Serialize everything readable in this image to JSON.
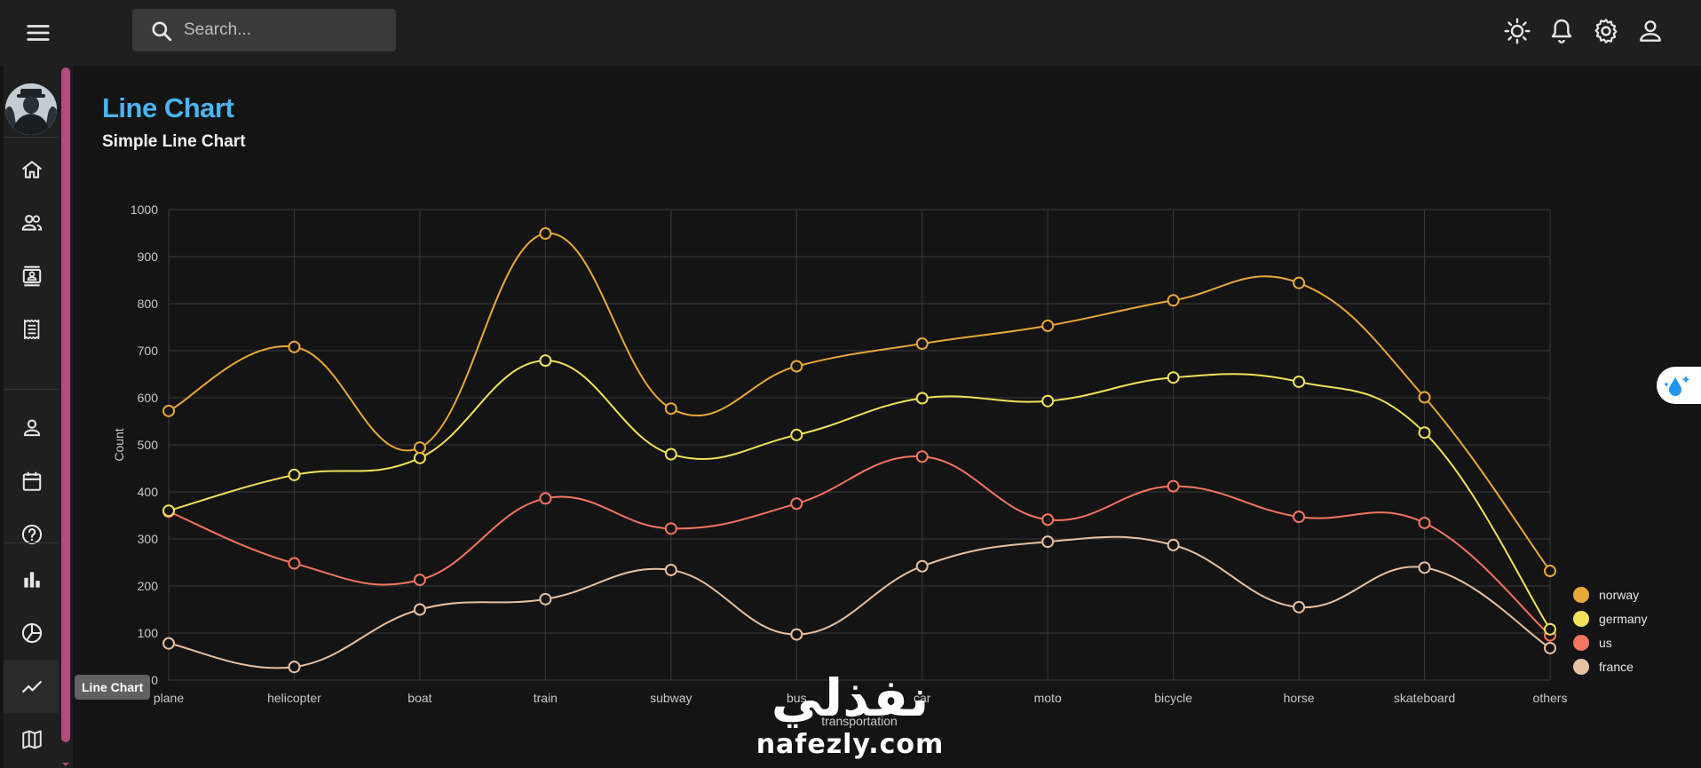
{
  "search": {
    "placeholder": "Search..."
  },
  "topbar": {
    "icons": [
      "menu-icon",
      "search-icon",
      "sun-icon",
      "bell-icon",
      "gear-icon",
      "user-icon"
    ]
  },
  "sidebar": {
    "items": [
      {
        "name": "home",
        "icon": "home-icon"
      },
      {
        "name": "team",
        "icon": "people-icon"
      },
      {
        "name": "contacts",
        "icon": "contacts-icon"
      },
      {
        "name": "invoices",
        "icon": "receipt-icon"
      },
      {
        "name": "profile",
        "icon": "person-icon"
      },
      {
        "name": "calendar",
        "icon": "calendar-icon"
      },
      {
        "name": "faq",
        "icon": "help-icon"
      },
      {
        "name": "bar-chart",
        "icon": "bar-chart-icon"
      },
      {
        "name": "pie-chart",
        "icon": "pie-chart-icon"
      },
      {
        "name": "line-chart",
        "icon": "line-chart-icon"
      },
      {
        "name": "geography",
        "icon": "map-icon"
      }
    ],
    "tooltip": "Line Chart"
  },
  "page": {
    "title": "Line Chart",
    "subtitle": "Simple Line Chart"
  },
  "watermark": {
    "arabic": "نفذلي",
    "latin": "nafezly.com"
  },
  "chart_data": {
    "type": "line",
    "title": "",
    "xlabel": "transportation",
    "ylabel": "Count",
    "ylim": [
      0,
      1000
    ],
    "yticks": [
      0,
      100,
      200,
      300,
      400,
      500,
      600,
      700,
      800,
      900,
      1000
    ],
    "grid": true,
    "legend_position": "bottom-right",
    "categories": [
      "plane",
      "helicopter",
      "boat",
      "train",
      "subway",
      "bus",
      "car",
      "moto",
      "bicycle",
      "horse",
      "skateboard",
      "others"
    ],
    "series": [
      {
        "name": "norway",
        "color": "#e8a838",
        "values": [
          572,
          708,
          494,
          949,
          577,
          667,
          715,
          753,
          807,
          844,
          601,
          232
        ]
      },
      {
        "name": "germany",
        "color": "#f1e15b",
        "values": [
          360,
          436,
          472,
          679,
          480,
          521,
          599,
          593,
          643,
          634,
          526,
          108
        ]
      },
      {
        "name": "us",
        "color": "#f47560",
        "values": [
          358,
          248,
          213,
          386,
          322,
          375,
          475,
          341,
          412,
          347,
          334,
          95
        ]
      },
      {
        "name": "france",
        "color": "#e8c1a0",
        "values": [
          78,
          28,
          150,
          172,
          234,
          97,
          242,
          294,
          287,
          155,
          239,
          68
        ]
      }
    ]
  }
}
